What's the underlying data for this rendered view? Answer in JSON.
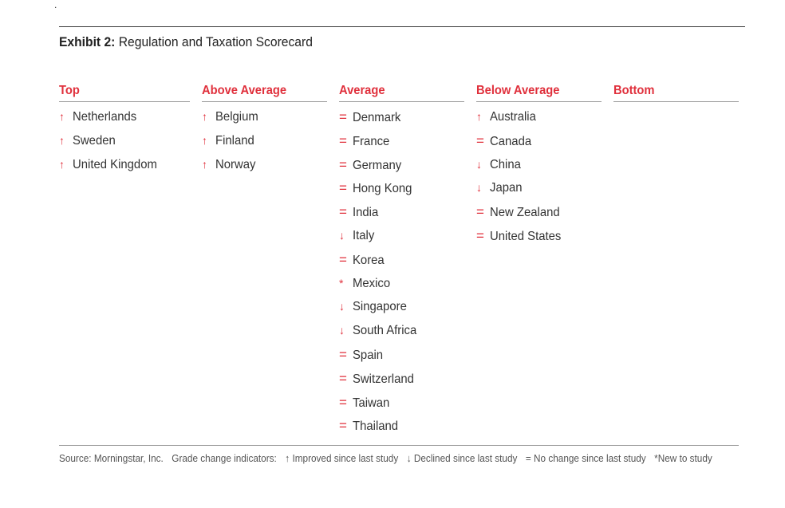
{
  "exhibit": {
    "label": "Exhibit 2:",
    "title": "Regulation and Taxation Scorecard"
  },
  "stray_mark": ".",
  "columns": [
    {
      "header": "Top",
      "entries": [
        {
          "indicator": "↑",
          "name": "Netherlands"
        },
        {
          "indicator": "↑",
          "name": "Sweden"
        },
        {
          "indicator": "↑",
          "name": "United Kingdom"
        }
      ]
    },
    {
      "header": "Above Average",
      "entries": [
        {
          "indicator": "↑",
          "name": "Belgium"
        },
        {
          "indicator": "↑",
          "name": "Finland"
        },
        {
          "indicator": "↑",
          "name": "Norway"
        }
      ]
    },
    {
      "header": "Average",
      "entries": [
        {
          "indicator": "=",
          "name": "Denmark"
        },
        {
          "indicator": "=",
          "name": "France"
        },
        {
          "indicator": "=",
          "name": "Germany"
        },
        {
          "indicator": "=",
          "name": "Hong Kong"
        },
        {
          "indicator": "=",
          "name": "India"
        },
        {
          "indicator": "↓",
          "name": "Italy"
        },
        {
          "indicator": "=",
          "name": "Korea"
        },
        {
          "indicator": "*",
          "name": "Mexico"
        },
        {
          "indicator": "↓",
          "name": "Singapore"
        },
        {
          "indicator": "↓",
          "name": "South Africa"
        },
        {
          "indicator": "=",
          "name": "Spain"
        },
        {
          "indicator": "=",
          "name": "Switzerland"
        },
        {
          "indicator": "=",
          "name": "Taiwan"
        },
        {
          "indicator": "=",
          "name": "Thailand"
        }
      ]
    },
    {
      "header": "Below Average",
      "entries": [
        {
          "indicator": "↑",
          "name": "Australia"
        },
        {
          "indicator": "=",
          "name": "Canada"
        },
        {
          "indicator": "↓",
          "name": "China"
        },
        {
          "indicator": "↓",
          "name": "Japan"
        },
        {
          "indicator": "=",
          "name": "New Zealand"
        },
        {
          "indicator": "=",
          "name": "United States"
        }
      ]
    },
    {
      "header": "Bottom",
      "entries": []
    }
  ],
  "footer": {
    "source": "Source: Morningstar, Inc.",
    "legend_title": "Grade change indicators:",
    "improved_symbol": "↑",
    "improved": "Improved since last study",
    "declined_symbol": "↓",
    "declined": "Declined since last study",
    "no_change_symbol": "=",
    "no_change": "No change since last study",
    "new": "*New to study"
  },
  "colors": {
    "accent_red": "#e0303c",
    "text": "#333333",
    "rule": "#9a9a9a"
  }
}
